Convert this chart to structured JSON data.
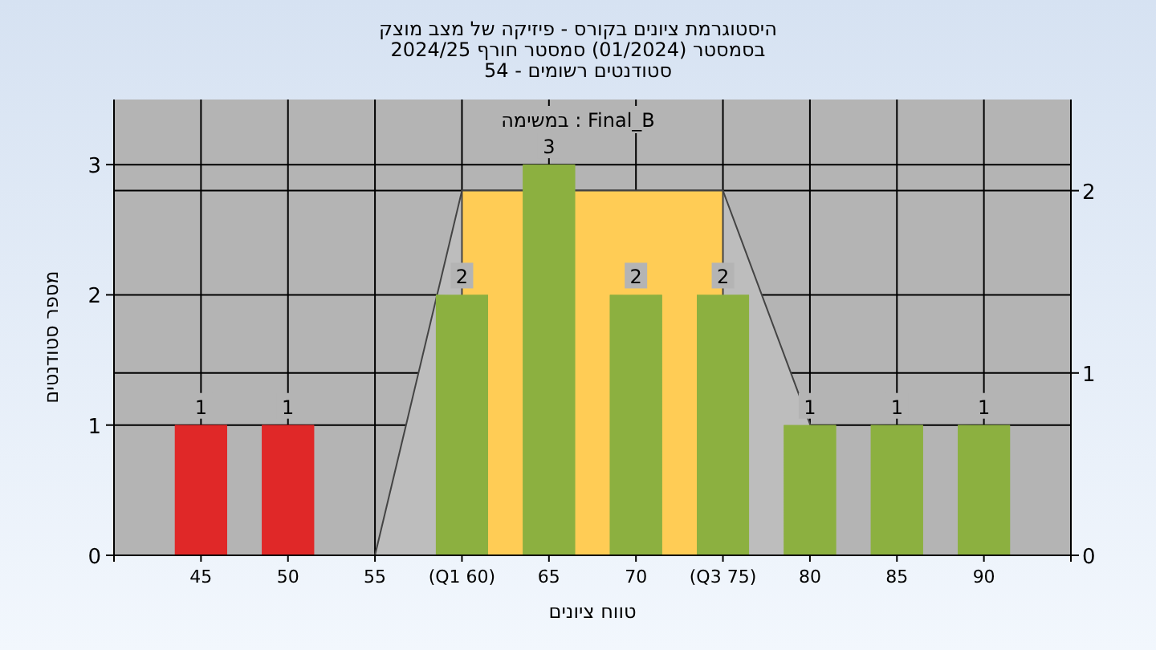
{
  "chart_data": {
    "type": "bar",
    "title": "היסטוגרמת ציונים בקורס - פיזיקה של מצב מוצק",
    "subtitle": "בסמסטר  (01/2024)  סמסטר חורף 2024/25",
    "annotations": [
      "סטודנטים רשומים - 54",
      "במשימה : Final_B"
    ],
    "xlabel": "טווח ציונים",
    "ylabel": "מספר סטודנטים",
    "categories": [
      "45",
      "50",
      "55",
      "(Q1 60)",
      "65",
      "70",
      "(Q3 75)",
      "80",
      "85",
      "90"
    ],
    "ylim": [
      0,
      3.5
    ],
    "yticks": [
      0,
      1,
      2,
      3
    ],
    "y2lim": [
      0,
      2.5
    ],
    "y2ticks": [
      0,
      1,
      2
    ],
    "grid": true,
    "series": [
      {
        "type": "area",
        "axis": "y2",
        "color": "#bdbdbd",
        "values": [
          null,
          null,
          0,
          2,
          null,
          2,
          2,
          0.72,
          null,
          null
        ]
      },
      {
        "type": "area",
        "axis": "y2",
        "color": "#ffcc55",
        "values": [
          null,
          null,
          null,
          2,
          null,
          2,
          2,
          null,
          null,
          null
        ]
      },
      {
        "colors": [
          "#e02828",
          "#e02828",
          "#8cb040",
          "#8cb040",
          "#8cb040",
          "#8cb040",
          "#8cb040",
          "#8cb040",
          "#8cb040",
          "#8cb040"
        ],
        "values": [
          1,
          1,
          0,
          2,
          3,
          2,
          2,
          1,
          1,
          1
        ],
        "value_labels": [
          "1",
          "1",
          null,
          "2",
          "3",
          "2",
          "2",
          "1",
          "1",
          "1"
        ]
      }
    ]
  }
}
